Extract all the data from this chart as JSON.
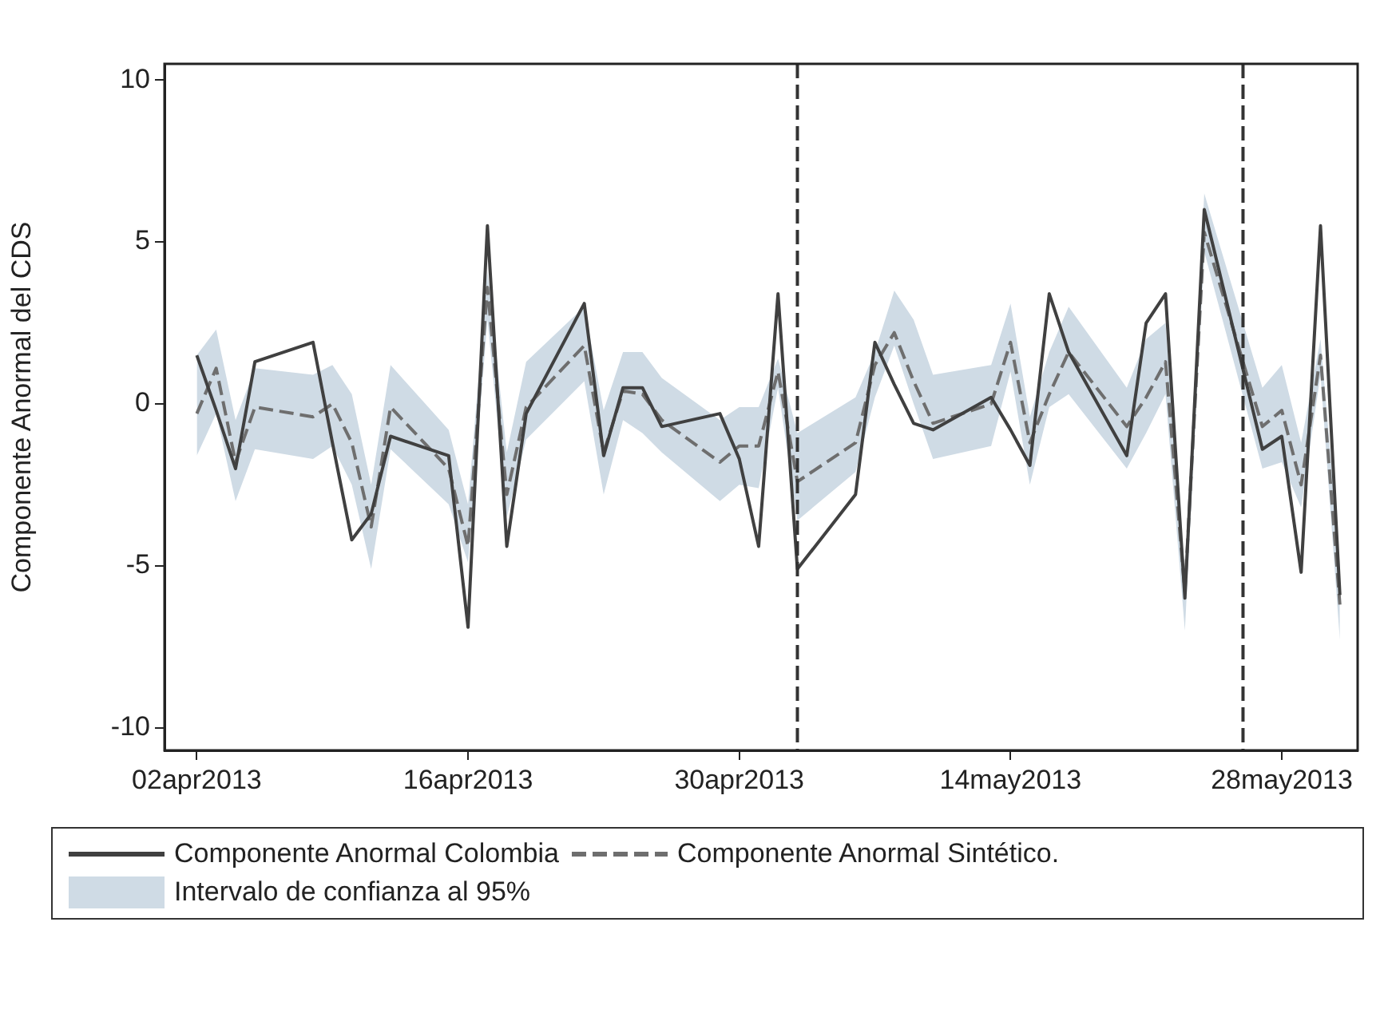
{
  "chart_data": {
    "type": "line",
    "ylabel": "Componente Anormal del CDS",
    "x": [
      "2013-04-02",
      "2013-04-03",
      "2013-04-04",
      "2013-04-05",
      "2013-04-08",
      "2013-04-09",
      "2013-04-10",
      "2013-04-11",
      "2013-04-12",
      "2013-04-15",
      "2013-04-16",
      "2013-04-17",
      "2013-04-18",
      "2013-04-19",
      "2013-04-22",
      "2013-04-23",
      "2013-04-24",
      "2013-04-25",
      "2013-04-26",
      "2013-04-29",
      "2013-04-30",
      "2013-05-01",
      "2013-05-02",
      "2013-05-03",
      "2013-05-06",
      "2013-05-07",
      "2013-05-08",
      "2013-05-09",
      "2013-05-10",
      "2013-05-13",
      "2013-05-14",
      "2013-05-15",
      "2013-05-16",
      "2013-05-17",
      "2013-05-20",
      "2013-05-21",
      "2013-05-22",
      "2013-05-23",
      "2013-05-24",
      "2013-05-27",
      "2013-05-28",
      "2013-05-29",
      "2013-05-30",
      "2013-05-31"
    ],
    "series": [
      {
        "name": "Componente Anormal Colombia",
        "color": "#404040",
        "line_style": "solid",
        "values": [
          1.5,
          -0.2,
          -2,
          1.3,
          1.9,
          -1.2,
          -4.2,
          -3.4,
          -1,
          -1.6,
          -6.9,
          5.5,
          -4.4,
          -0.3,
          3.1,
          -1.6,
          0.5,
          0.5,
          -0.7,
          -0.3,
          -1.7,
          -4.4,
          3.4,
          -5.1,
          -2.8,
          1.9,
          0.6,
          -0.6,
          -0.8,
          0.2,
          -0.8,
          -1.9,
          3.4,
          1.6,
          -1.6,
          2.5,
          3.4,
          -6,
          6,
          -1.4,
          -1,
          -5.2,
          5.5,
          -5.9
        ]
      },
      {
        "name": "Componente Anormal Sintético.",
        "color": "#6e6e6e",
        "line_style": "dashed",
        "values": [
          -0.3,
          1.1,
          -1.8,
          -0.1,
          -0.4,
          0,
          -1.2,
          -3.8,
          -0.1,
          -2,
          -4.4,
          3.6,
          -2.8,
          -0.1,
          1.8,
          -1.5,
          0.4,
          0.3,
          -0.5,
          -1.8,
          -1.3,
          -1.3,
          1,
          -2.4,
          -1.2,
          1.2,
          2.2,
          0.7,
          -0.6,
          0,
          1.9,
          -1.2,
          0.3,
          1.6,
          -0.7,
          0.2,
          1.3,
          -5.8,
          5.3,
          -0.7,
          -0.2,
          -2.5,
          1.5,
          -6.2
        ]
      },
      {
        "name": "Intervalo de confianza al 95%",
        "color": "#cfdbe5",
        "type": "area",
        "values": [
          null,
          null,
          null,
          null,
          null,
          null,
          null,
          null,
          null,
          null,
          null,
          null,
          null,
          null,
          null,
          null,
          null,
          null,
          null,
          null,
          null,
          null,
          null,
          null,
          null,
          null,
          null,
          null,
          null,
          null,
          null,
          null,
          null,
          null,
          null,
          null,
          null,
          null,
          null,
          null,
          null,
          null,
          null,
          null
        ],
        "upper": [
          1.5,
          2.3,
          -0.5,
          1.1,
          0.9,
          1.2,
          0.3,
          -2.5,
          1.2,
          -0.8,
          -3.1,
          4.1,
          -1.5,
          1.3,
          3,
          -0.2,
          1.6,
          1.6,
          0.8,
          -0.5,
          -0.1,
          -0.1,
          1.4,
          -0.9,
          0.2,
          1.6,
          3.5,
          2.6,
          0.9,
          1.2,
          3.1,
          -0.4,
          1.6,
          3,
          0.5,
          2,
          2.5,
          -5.2,
          6.5,
          0.5,
          1.2,
          -1.2,
          2,
          -5
        ],
        "lower": [
          -1.6,
          -0.3,
          -3,
          -1.4,
          -1.7,
          -1.3,
          -2.5,
          -5.1,
          -1.4,
          -3.1,
          -4.9,
          2.6,
          -3.5,
          -1.1,
          0.7,
          -2.8,
          -0.5,
          -0.9,
          -1.5,
          -3,
          -2.5,
          -2.6,
          0.5,
          -3.6,
          -2.1,
          0.2,
          1.8,
          0,
          -1.7,
          -1.3,
          1,
          -2.5,
          -0.1,
          0.3,
          -2,
          -0.9,
          0.3,
          -7,
          4.7,
          -2,
          -1.8,
          -3.2,
          0.9,
          -7.3
        ]
      }
    ],
    "xlim": [
      "2013-03-31T08:00",
      "2013-05-31T22:00"
    ],
    "xticks": [
      {
        "value": "2013-04-02",
        "label": "02apr2013"
      },
      {
        "value": "2013-04-16",
        "label": "16apr2013"
      },
      {
        "value": "2013-04-30",
        "label": "30apr2013"
      },
      {
        "value": "2013-05-14",
        "label": "14may2013"
      },
      {
        "value": "2013-05-28",
        "label": "28may2013"
      }
    ],
    "ylim": [
      -10.7,
      10.5
    ],
    "yticks": [
      -10,
      -5,
      0,
      5,
      10
    ],
    "ref_lines": [
      {
        "axis": "x",
        "value": "2013-05-03",
        "color": "#333333",
        "line_style": "dashed"
      },
      {
        "axis": "x",
        "value": "2013-05-26",
        "color": "#333333",
        "line_style": "dashed"
      }
    ],
    "grid": false,
    "legend": "bottom",
    "marker": "none"
  }
}
